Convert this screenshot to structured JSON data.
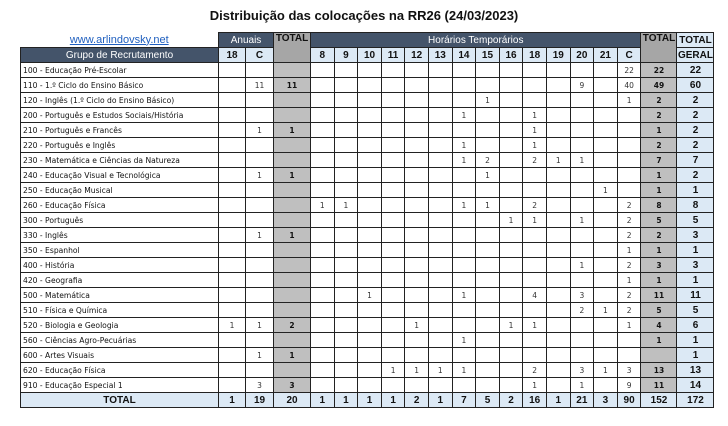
{
  "title": "Distribuição das colocações na RR26 (24/03/2023)",
  "link": "www.arlindovsky.net",
  "headers": {
    "group": "Grupo de Recrutamento",
    "anuais": "Anuais",
    "total": "TOTAL",
    "temporarios": "Horários Temporários",
    "total_geral_1": "TOTAL",
    "total_geral_2": "GERAL",
    "anuais_cols": [
      "18",
      "C"
    ],
    "temp_cols": [
      "8",
      "9",
      "10",
      "11",
      "12",
      "13",
      "14",
      "15",
      "16",
      "18",
      "19",
      "20",
      "21",
      "C"
    ]
  },
  "rows": [
    {
      "label": "100 - Educação Pré-Escolar",
      "values": [
        "",
        "",
        "",
        "",
        "",
        "",
        "",
        "",
        "",
        "",
        "",
        "",
        "",
        "",
        "",
        "",
        "22",
        "22",
        "22"
      ]
    },
    {
      "label": "110 - 1.º Ciclo do Ensino Básico",
      "values": [
        "",
        "11",
        "11",
        "",
        "",
        "",
        "",
        "",
        "",
        "",
        "",
        "",
        "",
        "",
        "9",
        "",
        "40",
        "49",
        "60"
      ]
    },
    {
      "label": "120 - Inglês (1.º Ciclo do Ensino Básico)",
      "values": [
        "",
        "",
        "",
        "",
        "",
        "",
        "",
        "",
        "",
        "",
        "1",
        "",
        "",
        "",
        "",
        "",
        "1",
        "2",
        "2"
      ]
    },
    {
      "label": "200 - Português e Estudos Sociais/História",
      "values": [
        "",
        "",
        "",
        "",
        "",
        "",
        "",
        "",
        "",
        "1",
        "",
        "",
        "1",
        "",
        "",
        "",
        "",
        "2",
        "2"
      ]
    },
    {
      "label": "210 - Português e Francês",
      "values": [
        "",
        "1",
        "1",
        "",
        "",
        "",
        "",
        "",
        "",
        "",
        "",
        "",
        "1",
        "",
        "",
        "",
        "",
        "1",
        "2"
      ]
    },
    {
      "label": "220 - Português e Inglês",
      "values": [
        "",
        "",
        "",
        "",
        "",
        "",
        "",
        "",
        "",
        "1",
        "",
        "",
        "1",
        "",
        "",
        "",
        "",
        "2",
        "2"
      ]
    },
    {
      "label": "230 - Matemática e Ciências da Natureza",
      "values": [
        "",
        "",
        "",
        "",
        "",
        "",
        "",
        "",
        "",
        "1",
        "2",
        "",
        "2",
        "1",
        "1",
        "",
        "",
        "7",
        "7"
      ]
    },
    {
      "label": "240 - Educação Visual e Tecnológica",
      "values": [
        "",
        "1",
        "1",
        "",
        "",
        "",
        "",
        "",
        "",
        "",
        "1",
        "",
        "",
        "",
        "",
        "",
        "",
        "1",
        "2"
      ]
    },
    {
      "label": "250 - Educação Musical",
      "values": [
        "",
        "",
        "",
        "",
        "",
        "",
        "",
        "",
        "",
        "",
        "",
        "",
        "",
        "",
        "",
        "1",
        "",
        "1",
        "1"
      ]
    },
    {
      "label": "260 - Educação Física",
      "values": [
        "",
        "",
        "",
        "1",
        "1",
        "",
        "",
        "",
        "",
        "1",
        "1",
        "",
        "2",
        "",
        "",
        "",
        "2",
        "8",
        "8"
      ]
    },
    {
      "label": "300 - Português",
      "values": [
        "",
        "",
        "",
        "",
        "",
        "",
        "",
        "",
        "",
        "",
        "",
        "1",
        "1",
        "",
        "1",
        "",
        "2",
        "5",
        "5"
      ]
    },
    {
      "label": "330 - Inglês",
      "values": [
        "",
        "1",
        "1",
        "",
        "",
        "",
        "",
        "",
        "",
        "",
        "",
        "",
        "",
        "",
        "",
        "",
        "2",
        "2",
        "3"
      ]
    },
    {
      "label": "350 - Espanhol",
      "values": [
        "",
        "",
        "",
        "",
        "",
        "",
        "",
        "",
        "",
        "",
        "",
        "",
        "",
        "",
        "",
        "",
        "1",
        "1",
        "1"
      ]
    },
    {
      "label": "400 - História",
      "values": [
        "",
        "",
        "",
        "",
        "",
        "",
        "",
        "",
        "",
        "",
        "",
        "",
        "",
        "",
        "1",
        "",
        "2",
        "3",
        "3"
      ]
    },
    {
      "label": "420 - Geografia",
      "values": [
        "",
        "",
        "",
        "",
        "",
        "",
        "",
        "",
        "",
        "",
        "",
        "",
        "",
        "",
        "",
        "",
        "1",
        "1",
        "1"
      ]
    },
    {
      "label": "500 - Matemática",
      "values": [
        "",
        "",
        "",
        "",
        "",
        "1",
        "",
        "",
        "",
        "1",
        "",
        "",
        "4",
        "",
        "3",
        "",
        "2",
        "11",
        "11"
      ]
    },
    {
      "label": "510 - Física e Química",
      "values": [
        "",
        "",
        "",
        "",
        "",
        "",
        "",
        "",
        "",
        "",
        "",
        "",
        "",
        "",
        "2",
        "1",
        "2",
        "5",
        "5"
      ]
    },
    {
      "label": "520 - Biologia e Geologia",
      "values": [
        "1",
        "1",
        "2",
        "",
        "",
        "",
        "",
        "1",
        "",
        "",
        "",
        "1",
        "1",
        "",
        "",
        "",
        "1",
        "4",
        "6"
      ]
    },
    {
      "label": "560 - Ciências Agro-Pecuárias",
      "values": [
        "",
        "",
        "",
        "",
        "",
        "",
        "",
        "",
        "",
        "1",
        "",
        "",
        "",
        "",
        "",
        "",
        "",
        "1",
        "1"
      ]
    },
    {
      "label": "600 - Artes Visuais",
      "values": [
        "",
        "1",
        "1",
        "",
        "",
        "",
        "",
        "",
        "",
        "",
        "",
        "",
        "",
        "",
        "",
        "",
        "",
        "",
        "1"
      ]
    },
    {
      "label": "620 - Educação Física",
      "values": [
        "",
        "",
        "",
        "",
        "",
        "",
        "1",
        "1",
        "1",
        "1",
        "",
        "",
        "2",
        "",
        "3",
        "1",
        "3",
        "13",
        "13"
      ]
    },
    {
      "label": "910 - Educação Especial 1",
      "values": [
        "",
        "3",
        "3",
        "",
        "",
        "",
        "",
        "",
        "",
        "",
        "",
        "",
        "1",
        "",
        "1",
        "",
        "9",
        "11",
        "14"
      ]
    }
  ],
  "totals": {
    "label": "TOTAL",
    "values": [
      "1",
      "19",
      "20",
      "1",
      "1",
      "1",
      "1",
      "2",
      "1",
      "7",
      "5",
      "2",
      "16",
      "1",
      "21",
      "3",
      "90",
      "152",
      "172"
    ]
  }
}
